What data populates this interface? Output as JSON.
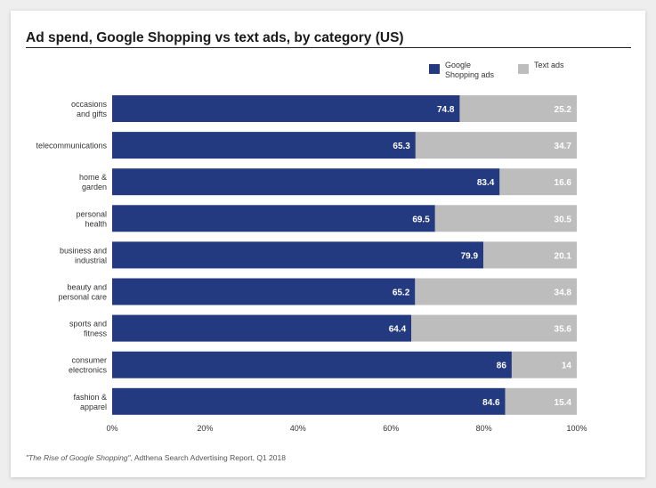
{
  "chart_data": {
    "type": "bar",
    "orientation": "horizontal",
    "stacked": true,
    "title": "Ad spend, Google Shopping vs text ads, by category (US)",
    "categories": [
      "occasions\nand gifts",
      "telecommunications",
      "home &\ngarden",
      "personal\nhealth",
      "business and\nindustrial",
      "beauty and\npersonal care",
      "sports and\nfitness",
      "consumer\nelectronics",
      "fashion &\napparel"
    ],
    "series": [
      {
        "name": "Google\nShopping ads",
        "color": "#233a80",
        "values": [
          74.8,
          65.3,
          83.4,
          69.5,
          79.9,
          65.2,
          64.4,
          86,
          84.6
        ],
        "labels": [
          "74.8",
          "65.3",
          "83.4",
          "69.5",
          "79.9",
          "65.2",
          "64.4",
          "86",
          "84.6"
        ]
      },
      {
        "name": "Text ads",
        "color": "#bdbdbd",
        "values": [
          25.2,
          34.7,
          16.6,
          30.5,
          20.1,
          34.8,
          35.6,
          14,
          15.4
        ],
        "labels": [
          "25.2",
          "34.7",
          "16.6",
          "30.5",
          "20.1",
          "34.8",
          "35.6",
          "14",
          "15.4"
        ]
      }
    ],
    "xlim": [
      0,
      100
    ],
    "xticks": [
      0,
      20,
      40,
      60,
      80,
      100
    ],
    "xtick_labels": [
      "0%",
      "20%",
      "40%",
      "60%",
      "80%",
      "100%"
    ],
    "legend_position": "top-right",
    "grid": false
  },
  "source": {
    "italic": "\"The Rise of Google Shopping\"",
    "rest": ", Adthena Search Advertising Report, Q1 2018"
  }
}
